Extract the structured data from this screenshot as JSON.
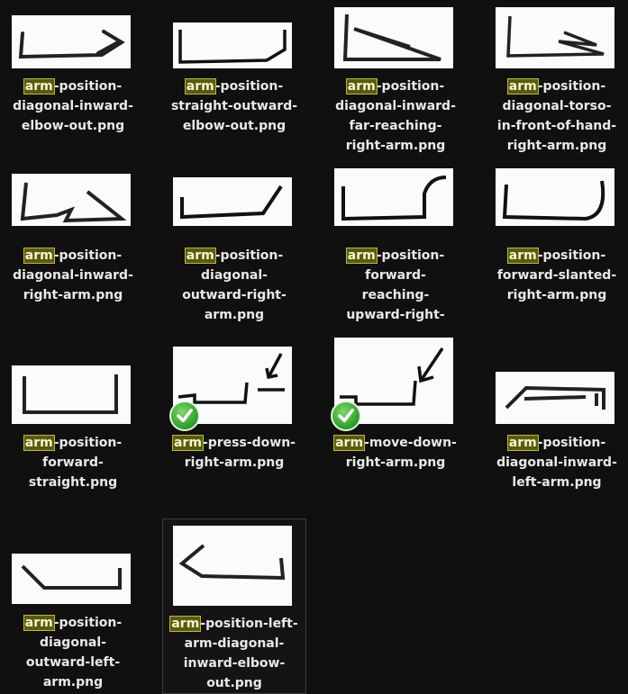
{
  "search": {
    "highlight": "arm"
  },
  "files": [
    {
      "lines": [
        "-position-",
        "diagonal-inward-",
        "elbow-out.png"
      ],
      "status": "none",
      "selected": false,
      "thumb_icon": "sketch-arm-icon"
    },
    {
      "lines": [
        "-position-",
        "straight-outward-",
        "elbow-out.png"
      ],
      "status": "none",
      "selected": false,
      "thumb_icon": "sketch-arm-icon"
    },
    {
      "lines": [
        "-position-",
        "diagonal-inward-",
        "far-reaching-",
        "right-arm.png"
      ],
      "status": "none",
      "selected": false,
      "thumb_icon": "sketch-arm-icon"
    },
    {
      "lines": [
        "-position-",
        "diagonal-torso-",
        "in-front-of-hand-",
        "right-arm.png"
      ],
      "status": "none",
      "selected": false,
      "thumb_icon": "sketch-arm-icon"
    },
    {
      "lines": [
        "-position-",
        "diagonal-inward-",
        "right-arm.png"
      ],
      "status": "none",
      "selected": false,
      "thumb_icon": "sketch-arm-icon"
    },
    {
      "lines": [
        "-position-",
        "diagonal-",
        "outward-right-",
        "arm.png"
      ],
      "status": "none",
      "selected": false,
      "thumb_icon": "sketch-arm-icon"
    },
    {
      "lines": [
        "-position-",
        "forward-",
        "reaching-",
        "upward-right-"
      ],
      "status": "none",
      "selected": false,
      "thumb_icon": "sketch-arm-icon"
    },
    {
      "lines": [
        "-position-",
        "forward-slanted-",
        "right-arm.png"
      ],
      "status": "none",
      "selected": false,
      "thumb_icon": "sketch-arm-icon"
    },
    {
      "lines": [
        "-position-",
        "forward-",
        "straight.png"
      ],
      "status": "none",
      "selected": false,
      "thumb_icon": "sketch-arm-icon"
    },
    {
      "lines": [
        "-press-down-",
        "right-arm.png"
      ],
      "status": "synced",
      "selected": false,
      "thumb_icon": "sketch-arm-press-icon"
    },
    {
      "lines": [
        "-move-down-",
        "right-arm.png"
      ],
      "status": "synced",
      "selected": false,
      "thumb_icon": "sketch-arm-move-icon"
    },
    {
      "lines": [
        "-position-",
        "diagonal-inward-",
        "left-arm.png"
      ],
      "status": "none",
      "selected": false,
      "thumb_icon": "sketch-arm-icon"
    },
    {
      "lines": [
        "-position-",
        "diagonal-",
        "outward-left-",
        "arm.png"
      ],
      "status": "none",
      "selected": false,
      "thumb_icon": "sketch-arm-icon"
    },
    {
      "lines": [
        "-position-left-",
        "arm-diagonal-",
        "inward-elbow-",
        "out.png"
      ],
      "status": "none",
      "selected": true,
      "thumb_icon": "sketch-arm-icon"
    }
  ]
}
